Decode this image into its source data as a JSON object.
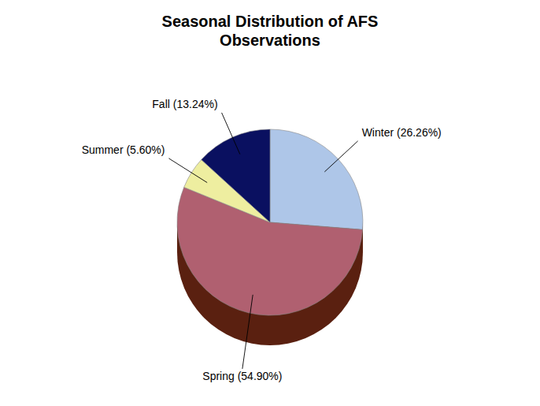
{
  "chart_data": {
    "type": "pie",
    "title": "Seasonal Distribution of AFS\nObservations",
    "categories": [
      "Winter (26.26%)",
      "Spring (54.90%)",
      "Summer (5.60%)",
      "Fall (13.24%)"
    ],
    "values": [
      26.26,
      54.9,
      5.6,
      13.24
    ],
    "colors": [
      "#aec6e8",
      "#b06070",
      "#eeeea0",
      "#0a1060"
    ]
  }
}
